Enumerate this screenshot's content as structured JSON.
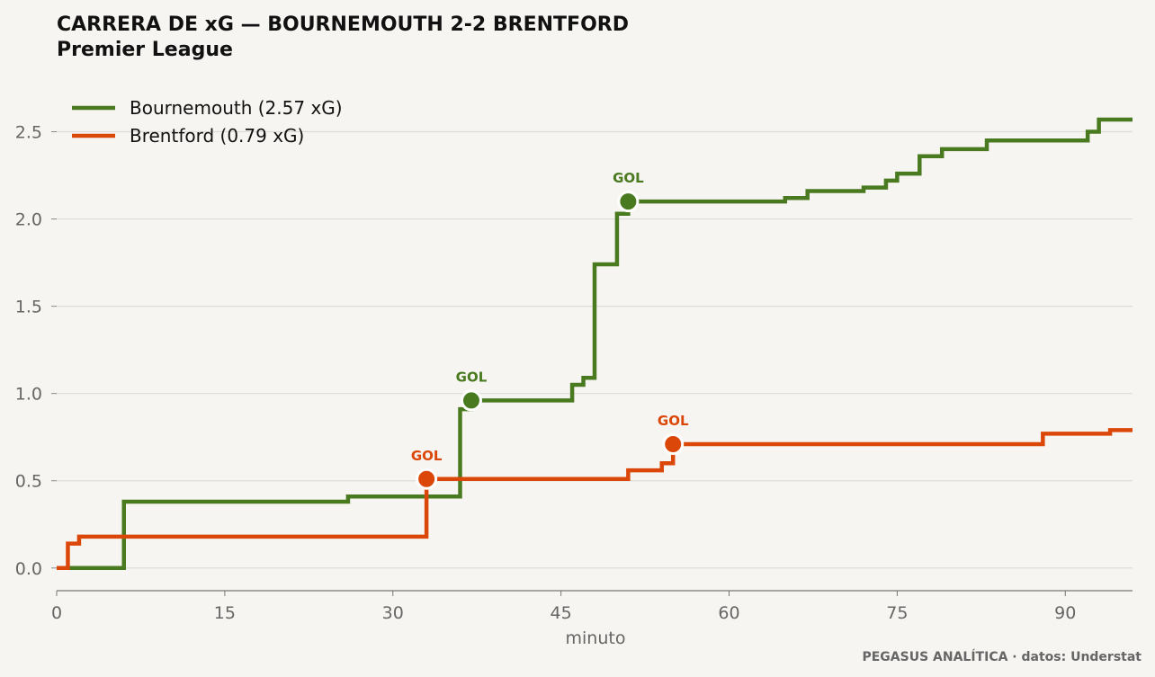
{
  "chart_data": {
    "type": "line",
    "title": "CARRERA DE xG — BOURNEMOUTH 2-2 BRENTFORD",
    "subtitle": "Premier League",
    "xlabel": "minuto",
    "ylabel": "",
    "xlim": [
      0,
      96
    ],
    "ylim": [
      -0.13,
      2.75
    ],
    "xticks": [
      0,
      15,
      30,
      45,
      60,
      75,
      90
    ],
    "yticks": [
      0.0,
      0.5,
      1.0,
      1.5,
      2.0,
      2.5
    ],
    "xtick_labels": [
      "0",
      "15",
      "30",
      "45",
      "60",
      "75",
      "90"
    ],
    "ytick_labels": [
      "0.0",
      "0.5",
      "1.0",
      "1.5",
      "2.0",
      "2.5"
    ],
    "grid": "horizontal",
    "legend_position": "top-left",
    "goal_label": "GOL",
    "credit": "PEGASUS ANALÍTICA · datos: Understat",
    "series": [
      {
        "name": "Bournemouth (2.57 xG)",
        "color": "#4a7a20",
        "step": "post",
        "x": [
          0,
          6,
          26,
          36,
          37,
          46,
          47,
          48,
          50,
          51,
          65,
          67,
          72,
          74,
          75,
          77,
          79,
          83,
          92,
          93,
          96
        ],
        "y": [
          0.0,
          0.38,
          0.41,
          0.91,
          0.96,
          1.05,
          1.09,
          1.74,
          2.03,
          2.1,
          2.12,
          2.16,
          2.18,
          2.22,
          2.26,
          2.36,
          2.4,
          2.45,
          2.5,
          2.57,
          2.57
        ],
        "goals": [
          {
            "x": 37,
            "y": 0.96
          },
          {
            "x": 51,
            "y": 2.1
          }
        ]
      },
      {
        "name": "Brentford (0.79 xG)",
        "color": "#db4709",
        "step": "post",
        "x": [
          0,
          1,
          2,
          33,
          51,
          54,
          55,
          88,
          94,
          96
        ],
        "y": [
          0.0,
          0.14,
          0.18,
          0.51,
          0.56,
          0.6,
          0.71,
          0.77,
          0.79,
          0.79
        ],
        "goals": [
          {
            "x": 33,
            "y": 0.51
          },
          {
            "x": 55,
            "y": 0.71
          }
        ]
      }
    ]
  }
}
